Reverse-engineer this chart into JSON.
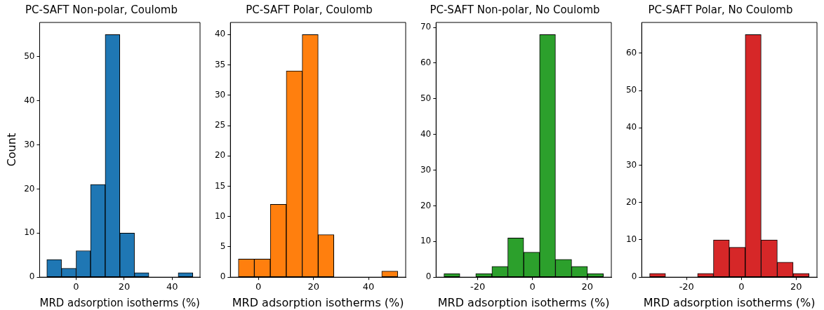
{
  "chart_data": [
    {
      "type": "histogram",
      "title": "PC-SAFT Non-polar, Coulomb",
      "xlabel": "MRD adsorption isotherms (%)",
      "ylabel": "Count",
      "color": "#1f77b4",
      "bins": [
        -12.2,
        -6.1,
        0,
        6.0,
        12.1,
        18.2,
        24.3,
        30.3,
        36.4,
        42.5,
        48.6
      ],
      "values": [
        4,
        2,
        6,
        21,
        55,
        10,
        1,
        0,
        0,
        1
      ],
      "xlim": [
        -15.2,
        51.6
      ],
      "xticks": [
        0,
        20,
        40
      ],
      "ylim": [
        0,
        57.75
      ],
      "yticks": [
        0,
        10,
        20,
        30,
        40,
        50
      ]
    },
    {
      "type": "histogram",
      "title": "PC-SAFT Polar, Coulomb",
      "xlabel": "MRD adsorption isotherms (%)",
      "color": "#ff7f0e",
      "bins": [
        -7.3,
        -1.5,
        4.3,
        10.1,
        15.9,
        21.7,
        27.4,
        33.2,
        39.0,
        44.8,
        50.6
      ],
      "values": [
        3,
        3,
        12,
        34,
        40,
        7,
        0,
        0,
        0,
        1
      ],
      "xlim": [
        -10.2,
        53.5
      ],
      "xticks": [
        0,
        20,
        40
      ],
      "ylim": [
        0,
        42
      ],
      "yticks": [
        0,
        5,
        10,
        15,
        20,
        25,
        30,
        35,
        40
      ]
    },
    {
      "type": "histogram",
      "title": "PC-SAFT Non-polar, No Coulomb",
      "xlabel": "MRD adsorption isotherms (%)",
      "color": "#2ca02c",
      "bins": [
        -32.3,
        -26.5,
        -20.7,
        -14.8,
        -9.0,
        -3.2,
        2.6,
        8.4,
        14.3,
        20.1,
        25.9
      ],
      "values": [
        1,
        0,
        1,
        3,
        11,
        7,
        68,
        5,
        3,
        1
      ],
      "xlim": [
        -35.2,
        28.8
      ],
      "xticks": [
        -20,
        0,
        20
      ],
      "ylim": [
        0,
        71.4
      ],
      "yticks": [
        0,
        10,
        20,
        30,
        40,
        50,
        60,
        70
      ]
    },
    {
      "type": "histogram",
      "title": "PC-SAFT Polar, No Coulomb",
      "xlabel": "MRD adsorption isotherms (%)",
      "color": "#d62728",
      "bins": [
        -33.5,
        -27.7,
        -21.9,
        -16.0,
        -10.2,
        -4.4,
        1.4,
        7.2,
        13.1,
        18.9,
        24.7
      ],
      "values": [
        1,
        0,
        0,
        1,
        10,
        8,
        65,
        10,
        4,
        1
      ],
      "xlim": [
        -36.4,
        27.6
      ],
      "xticks": [
        -20,
        0,
        20
      ],
      "ylim": [
        0,
        68.25
      ],
      "yticks": [
        0,
        10,
        20,
        30,
        40,
        50,
        60
      ]
    }
  ]
}
